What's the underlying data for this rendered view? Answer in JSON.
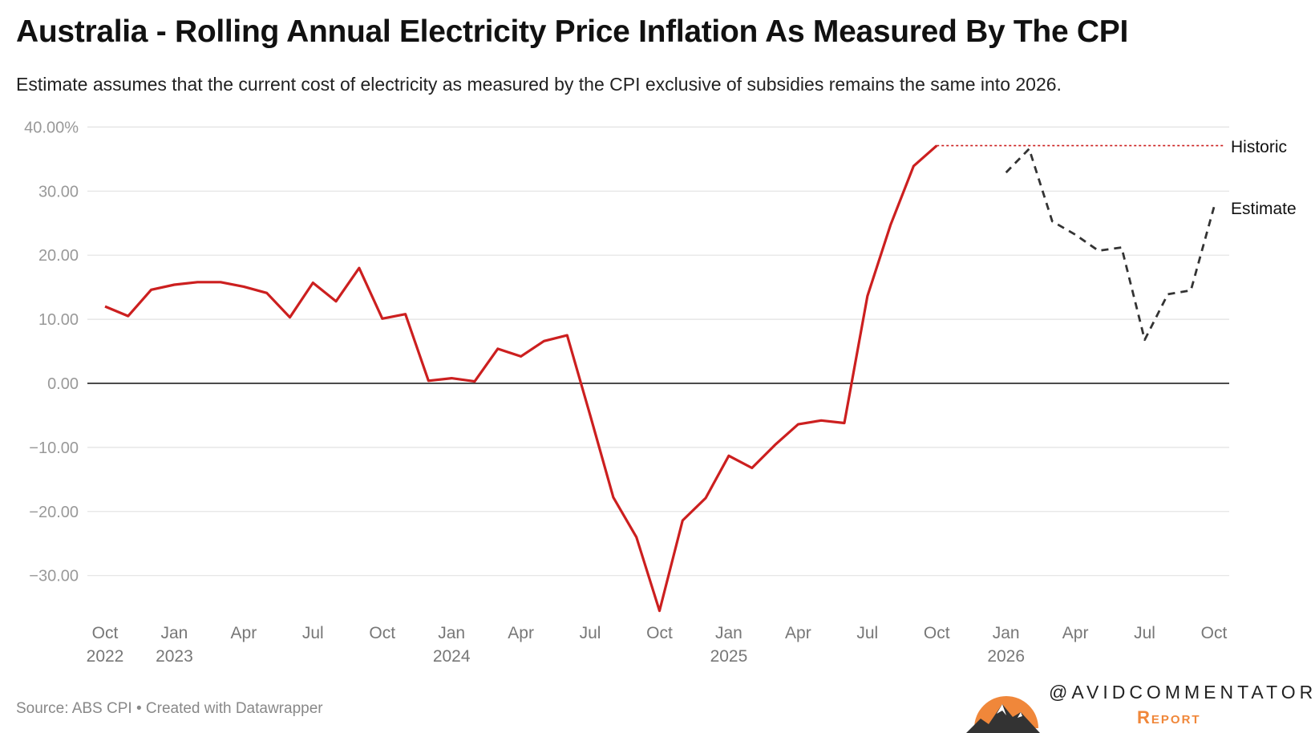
{
  "title": "Australia - Rolling Annual Electricity Price Inflation As Measured By The CPI",
  "subtitle": "Estimate assumes that the current cost of electricity as measured by the CPI exclusive of subsidies remains the same into 2026.",
  "source": "Source: ABS CPI • Created with Datawrapper",
  "branding": {
    "handle": "@AVIDCOMMENTATOR",
    "report": "Report",
    "logo_colors": {
      "sun": "#f0873a",
      "mountain": "#333333"
    }
  },
  "chart_data": {
    "type": "line",
    "ylim": [
      -35.5,
      40
    ],
    "grid": true,
    "y_ticks": [
      {
        "value": 40,
        "label": "40.00%"
      },
      {
        "value": 30,
        "label": "30.00"
      },
      {
        "value": 20,
        "label": "20.00"
      },
      {
        "value": 10,
        "label": "10.00"
      },
      {
        "value": 0,
        "label": "0.00"
      },
      {
        "value": -10,
        "label": "−10.00"
      },
      {
        "value": -20,
        "label": "−20.00"
      },
      {
        "value": -30,
        "label": "−30.00"
      }
    ],
    "x_ticks": [
      {
        "date": "2022-10",
        "label": "Oct",
        "year": "2022"
      },
      {
        "date": "2023-01",
        "label": "Jan",
        "year": "2023"
      },
      {
        "date": "2023-04",
        "label": "Apr",
        "year": ""
      },
      {
        "date": "2023-07",
        "label": "Jul",
        "year": ""
      },
      {
        "date": "2023-10",
        "label": "Oct",
        "year": ""
      },
      {
        "date": "2024-01",
        "label": "Jan",
        "year": "2024"
      },
      {
        "date": "2024-04",
        "label": "Apr",
        "year": ""
      },
      {
        "date": "2024-07",
        "label": "Jul",
        "year": ""
      },
      {
        "date": "2024-10",
        "label": "Oct",
        "year": ""
      },
      {
        "date": "2025-01",
        "label": "Jan",
        "year": "2025"
      },
      {
        "date": "2025-04",
        "label": "Apr",
        "year": ""
      },
      {
        "date": "2025-07",
        "label": "Jul",
        "year": ""
      },
      {
        "date": "2025-10",
        "label": "Oct",
        "year": ""
      },
      {
        "date": "2026-01",
        "label": "Jan",
        "year": "2026"
      },
      {
        "date": "2026-04",
        "label": "Apr",
        "year": ""
      },
      {
        "date": "2026-07",
        "label": "Jul",
        "year": ""
      },
      {
        "date": "2026-10",
        "label": "Oct",
        "year": ""
      }
    ],
    "series": [
      {
        "name": "Historic",
        "color": "#cc1f1f",
        "style": "solid",
        "x": [
          "2022-10",
          "2022-11",
          "2022-12",
          "2023-01",
          "2023-02",
          "2023-03",
          "2023-04",
          "2023-05",
          "2023-06",
          "2023-07",
          "2023-08",
          "2023-09",
          "2023-10",
          "2023-11",
          "2023-12",
          "2024-01",
          "2024-02",
          "2024-03",
          "2024-04",
          "2024-05",
          "2024-06",
          "2024-07",
          "2024-08",
          "2024-09",
          "2024-10",
          "2024-11",
          "2024-12",
          "2025-01",
          "2025-02",
          "2025-03",
          "2025-04",
          "2025-05",
          "2025-06",
          "2025-07",
          "2025-08",
          "2025-09",
          "2025-10"
        ],
        "values": [
          12.0,
          10.5,
          14.6,
          15.4,
          15.8,
          15.8,
          15.1,
          14.1,
          10.3,
          15.7,
          12.8,
          18.0,
          10.1,
          10.8,
          0.4,
          0.8,
          0.3,
          5.4,
          4.2,
          6.6,
          7.5,
          -5.0,
          -17.8,
          -24.0,
          -35.5,
          -21.4,
          -17.9,
          -11.3,
          -13.2,
          -9.6,
          -6.4,
          -5.8,
          -6.2,
          13.6,
          24.7,
          33.9,
          37.1
        ]
      },
      {
        "name": "Estimate",
        "color": "#333333",
        "style": "dashed",
        "x": [
          "2026-01",
          "2026-02",
          "2026-03",
          "2026-04",
          "2026-05",
          "2026-06",
          "2026-07",
          "2026-08",
          "2026-09",
          "2026-10"
        ],
        "values": [
          32.9,
          36.6,
          25.3,
          23.2,
          20.7,
          21.2,
          6.8,
          13.9,
          14.5,
          27.5
        ]
      }
    ],
    "reference_line": {
      "label": "Historic",
      "value": 37.1,
      "color": "#cc1f1f",
      "style": "dotted",
      "from": "2025-10"
    }
  }
}
